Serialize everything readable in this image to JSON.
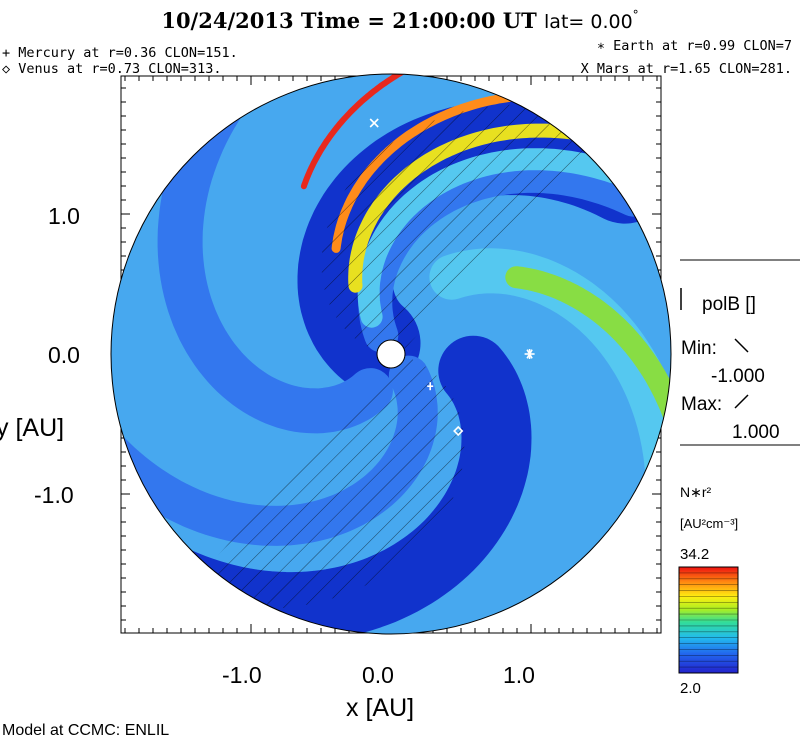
{
  "header": {
    "date": "10/24/2013",
    "time_label": "Time = 21:00:00 UT",
    "lat_label": "lat= 0.00",
    "degree": "°"
  },
  "planets": {
    "mercury": "+ Mercury at r=0.36 CLON=151.",
    "venus": "◇ Venus at r=0.73 CLON=313.",
    "earth": "∗ Earth at  r=0.99 CLON=7",
    "mars": "X Mars at r=1.65 CLON=281."
  },
  "legend": {
    "polb_title": "polB []",
    "min_label": "Min:",
    "min_value": "-1.000",
    "max_label": "Max:",
    "max_value": "1.000",
    "density_label": "N∗r²",
    "density_units": "[AU²cm⁻³]",
    "cbar_max": "34.2",
    "cbar_min": "2.0"
  },
  "footer": "Model at CCMC: ENLIL",
  "chart_data": {
    "type": "heatmap",
    "xlabel": "x [AU]",
    "ylabel": "y [AU]",
    "xlim": [
      -2.0,
      2.0
    ],
    "ylim": [
      -2.0,
      2.0
    ],
    "x_ticks": [
      -1.0,
      0.0,
      1.0
    ],
    "y_ticks": [
      1.0,
      0.0,
      -1.0
    ],
    "x_tick_labels": [
      "-1.0",
      "0.0",
      "1.0"
    ],
    "y_tick_labels": [
      "1.0",
      "0.0",
      "-1.0"
    ],
    "domain_radius_au": 2.0,
    "sun_radius_au": 0.1,
    "colorbar": {
      "min": 2.0,
      "max": 34.2
    },
    "planets": [
      {
        "name": "Mercury",
        "r": 0.36,
        "clon": 151,
        "x": 0.28,
        "y": -0.23,
        "marker": "+"
      },
      {
        "name": "Venus",
        "r": 0.73,
        "clon": 313,
        "x": 0.48,
        "y": -0.55,
        "marker": "diamond"
      },
      {
        "name": "Earth",
        "r": 0.99,
        "clon": 7,
        "x": 0.99,
        "y": 0.0,
        "marker": "asterisk"
      },
      {
        "name": "Mars",
        "r": 1.65,
        "clon": 281,
        "x": -0.12,
        "y": 1.65,
        "marker": "x"
      }
    ],
    "colors": {
      "background": "#47a8ef",
      "deep": "#1133cc",
      "mid": "#3377ee",
      "light": "#55c8f0",
      "green": "#88dd44",
      "stream_red": "#e8281c",
      "stream_orange": "#ff8c1a",
      "stream_yellow": "#e8e020"
    }
  }
}
